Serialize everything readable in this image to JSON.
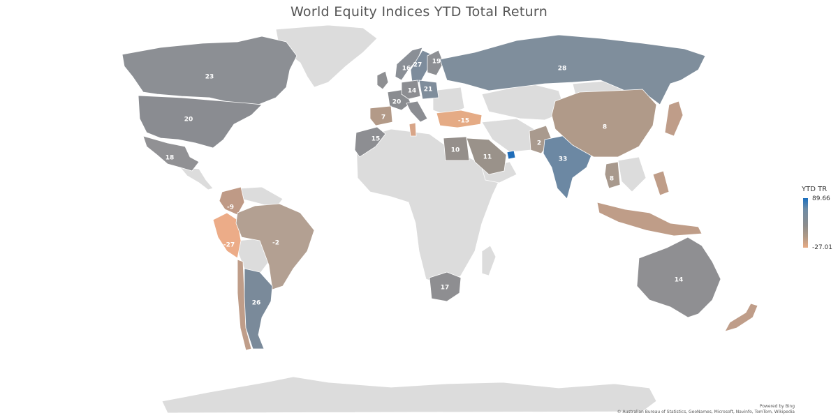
{
  "title": "World Equity Indices YTD Total Return",
  "legend": {
    "title": "YTD TR",
    "max": "89.66",
    "min": "-27.01",
    "color_high": "#1a6fbf",
    "color_mid": "#8c8c8c",
    "color_low": "#e8aa84"
  },
  "credit": {
    "line1": "Powered by Bing",
    "line2": "© Australian Bureau of Statistics, GeoNames, Microsoft, Navinfo, TomTom, Wikipedia"
  },
  "no_data_color": "#dcdcdc",
  "labels": [
    {
      "value": "23"
    },
    {
      "value": "20"
    },
    {
      "value": "18"
    },
    {
      "value": "-9"
    },
    {
      "value": "-27"
    },
    {
      "value": "-2"
    },
    {
      "value": "26"
    },
    {
      "value": "16"
    },
    {
      "value": "27"
    },
    {
      "value": "19"
    },
    {
      "value": "28"
    },
    {
      "value": "14"
    },
    {
      "value": "21"
    },
    {
      "value": "20"
    },
    {
      "value": "7"
    },
    {
      "value": "-15"
    },
    {
      "value": "15"
    },
    {
      "value": "10"
    },
    {
      "value": "11"
    },
    {
      "value": "2"
    },
    {
      "value": "8"
    },
    {
      "value": "33"
    },
    {
      "value": "8"
    },
    {
      "value": "17"
    },
    {
      "value": "14"
    }
  ]
}
